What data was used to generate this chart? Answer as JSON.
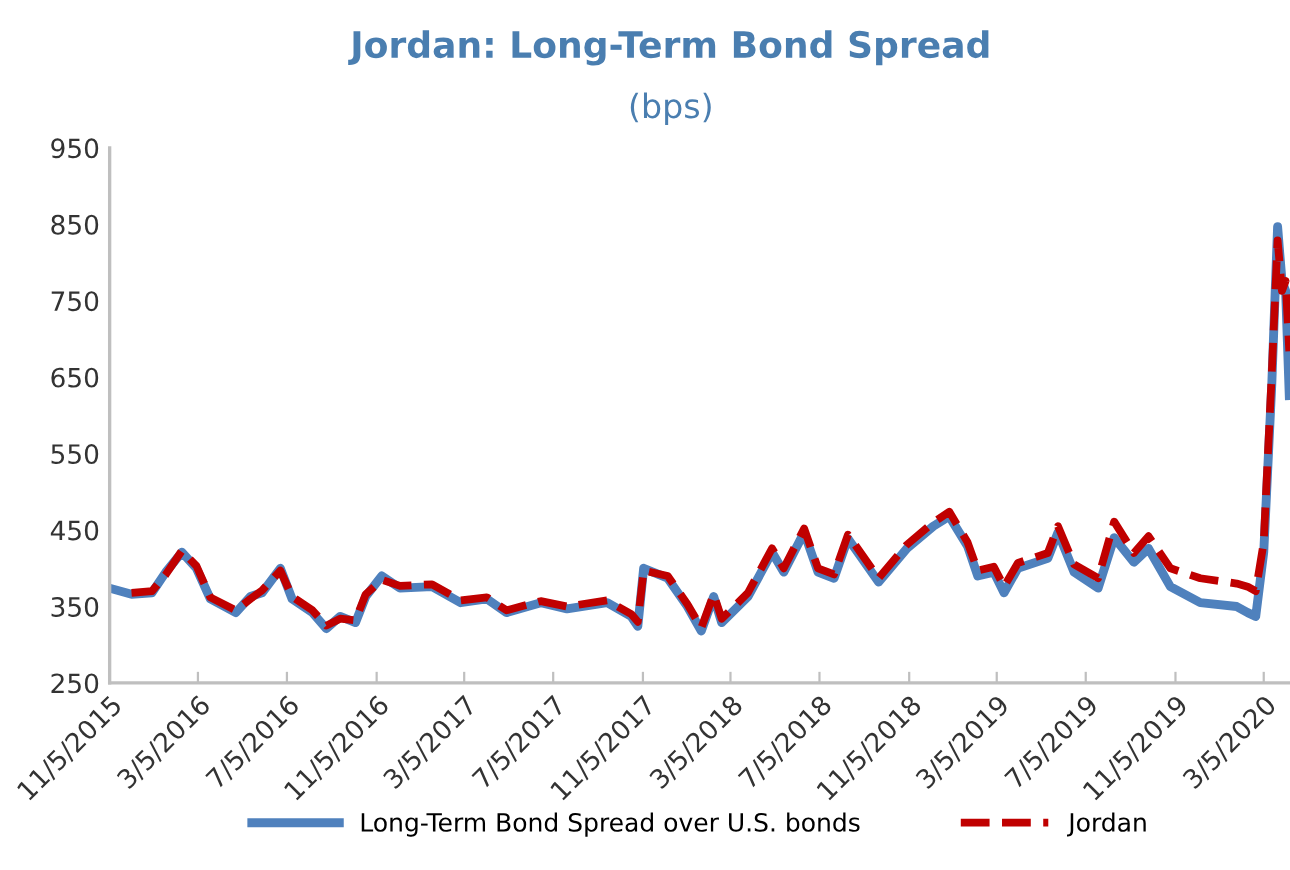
{
  "chart_data": {
    "type": "line",
    "title": "Jordan: Long-Term Bond Spread",
    "subtitle": "(bps)",
    "x": [
      "2015-11-05",
      "2015-12-05",
      "2016-01-02",
      "2016-01-21",
      "2016-02-12",
      "2016-03-03",
      "2016-03-22",
      "2016-04-26",
      "2016-05-16",
      "2016-06-01",
      "2016-06-26",
      "2016-07-12",
      "2016-08-09",
      "2016-08-28",
      "2016-09-16",
      "2016-10-07",
      "2016-10-21",
      "2016-11-12",
      "2016-12-07",
      "2017-01-20",
      "2017-02-28",
      "2017-04-05",
      "2017-05-02",
      "2017-06-18",
      "2017-07-24",
      "2017-09-17",
      "2017-10-20",
      "2017-10-29",
      "2017-11-06",
      "2017-12-09",
      "2018-01-05",
      "2018-01-24",
      "2018-02-10",
      "2018-02-21",
      "2018-03-29",
      "2018-05-01",
      "2018-05-17",
      "2018-06-14",
      "2018-07-03",
      "2018-07-25",
      "2018-08-13",
      "2018-09-24",
      "2018-11-02",
      "2018-12-08",
      "2018-12-30",
      "2019-01-24",
      "2019-02-07",
      "2019-03-01",
      "2019-03-15",
      "2019-04-03",
      "2019-05-14",
      "2019-05-28",
      "2019-06-19",
      "2019-07-22",
      "2019-08-13",
      "2019-09-09",
      "2019-09-29",
      "2019-10-29",
      "2019-12-09",
      "2020-01-28",
      "2020-02-12",
      "2020-02-23",
      "2020-03-05",
      "2020-03-16",
      "2020-03-24",
      "2020-03-30",
      "2020-04-04",
      "2020-04-09"
    ],
    "series": [
      {
        "name": "Long-Term Bond Spread over U.S. bonds",
        "color": "#4f81bd",
        "line_style": "solid",
        "values": [
          374,
          366,
          368,
          395,
          421,
          400,
          360,
          342,
          363,
          368,
          400,
          360,
          342,
          321,
          337,
          329,
          363,
          390,
          374,
          376,
          355,
          360,
          342,
          355,
          347,
          355,
          337,
          324,
          400,
          387,
          350,
          318,
          363,
          329,
          363,
          421,
          395,
          447,
          395,
          387,
          439,
          382,
          426,
          455,
          468,
          429,
          390,
          395,
          368,
          400,
          413,
          447,
          395,
          374,
          440,
          408,
          426,
          376,
          355,
          350,
          342,
          337,
          421,
          640,
          847,
          776,
          763,
          626
        ]
      },
      {
        "name": "Jordan",
        "color": "#c00000",
        "line_style": "dashed",
        "values": [
          null,
          368,
          370,
          392,
          423,
          403,
          362,
          345,
          360,
          371,
          397,
          363,
          345,
          325,
          334,
          332,
          366,
          385,
          377,
          379,
          358,
          362,
          345,
          357,
          350,
          358,
          340,
          330,
          397,
          390,
          353,
          322,
          366,
          334,
          368,
          426,
          400,
          452,
          400,
          392,
          444,
          387,
          431,
          460,
          474,
          434,
          397,
          402,
          376,
          407,
          420,
          455,
          405,
          387,
          461,
          420,
          442,
          400,
          387,
          380,
          376,
          370,
          434,
          655,
          829,
          763,
          776,
          684
        ]
      }
    ],
    "xlim": [
      "2015-11-05",
      "2020-04-10"
    ],
    "xticks": [
      {
        "value": "2015-11-05",
        "label": "11/5/2015"
      },
      {
        "value": "2016-03-05",
        "label": "3/5/2016"
      },
      {
        "value": "2016-07-05",
        "label": "7/5/2016"
      },
      {
        "value": "2016-11-05",
        "label": "11/5/2016"
      },
      {
        "value": "2017-03-05",
        "label": "3/5/2017"
      },
      {
        "value": "2017-07-05",
        "label": "7/5/2017"
      },
      {
        "value": "2017-11-05",
        "label": "11/5/2017"
      },
      {
        "value": "2018-03-05",
        "label": "3/5/2018"
      },
      {
        "value": "2018-07-05",
        "label": "7/5/2018"
      },
      {
        "value": "2018-11-05",
        "label": "11/5/2018"
      },
      {
        "value": "2019-03-05",
        "label": "3/5/2019"
      },
      {
        "value": "2019-07-05",
        "label": "7/5/2019"
      },
      {
        "value": "2019-11-05",
        "label": "11/5/2019"
      },
      {
        "value": "2020-03-05",
        "label": "3/5/2020"
      }
    ],
    "ylim": [
      250,
      950
    ],
    "yticks": [
      250,
      350,
      450,
      550,
      650,
      750,
      850,
      950
    ],
    "grid": false,
    "legend": "bottom",
    "marker": "none"
  }
}
